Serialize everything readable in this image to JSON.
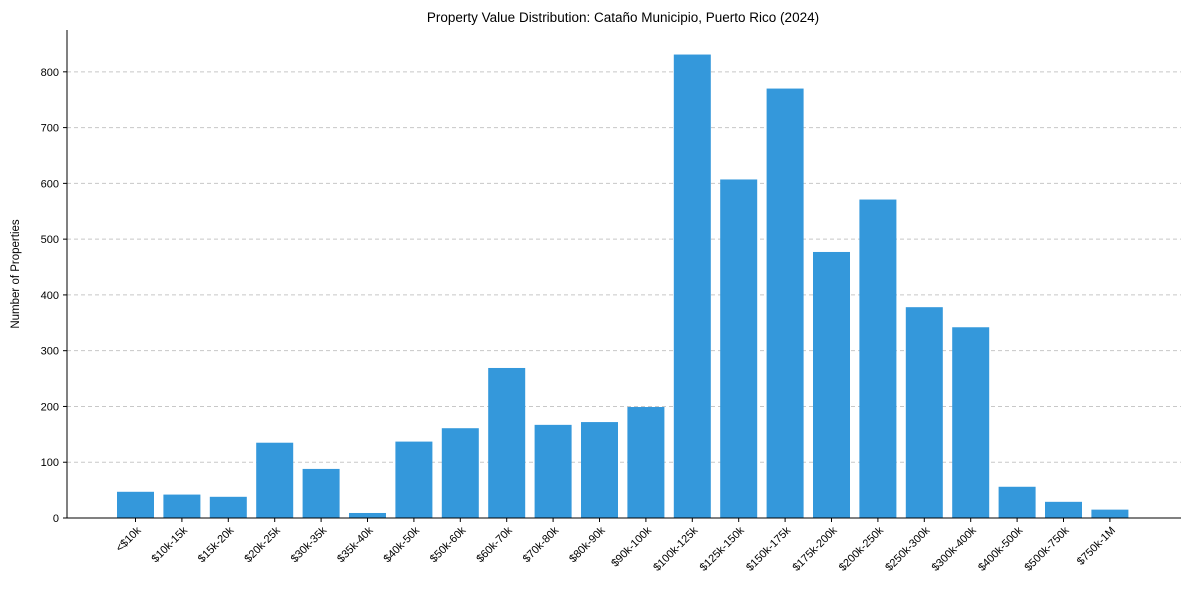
{
  "chart_data": {
    "type": "bar",
    "title": "Property Value Distribution: Cataño Municipio, Puerto Rico (2024)",
    "xlabel": "",
    "ylabel": "Number of Properties",
    "ylim": [
      0,
      875
    ],
    "yticks": [
      0,
      100,
      200,
      300,
      400,
      500,
      600,
      700,
      800
    ],
    "grid": "y-dashed",
    "bar_color": "#3498db",
    "categories": [
      "<$10k",
      "$10k-15k",
      "$15k-20k",
      "$20k-25k",
      "$30k-35k",
      "$35k-40k",
      "$40k-50k",
      "$50k-60k",
      "$60k-70k",
      "$70k-80k",
      "$80k-90k",
      "$90k-100k",
      "$100k-125k",
      "$125k-150k",
      "$150k-175k",
      "$175k-200k",
      "$200k-250k",
      "$250k-300k",
      "$300k-400k",
      "$400k-500k",
      "$500k-750k",
      "$750k-1M"
    ],
    "values": [
      47,
      42,
      38,
      135,
      88,
      9,
      137,
      161,
      269,
      167,
      172,
      199,
      831,
      607,
      770,
      477,
      571,
      378,
      342,
      56,
      29,
      15
    ]
  }
}
